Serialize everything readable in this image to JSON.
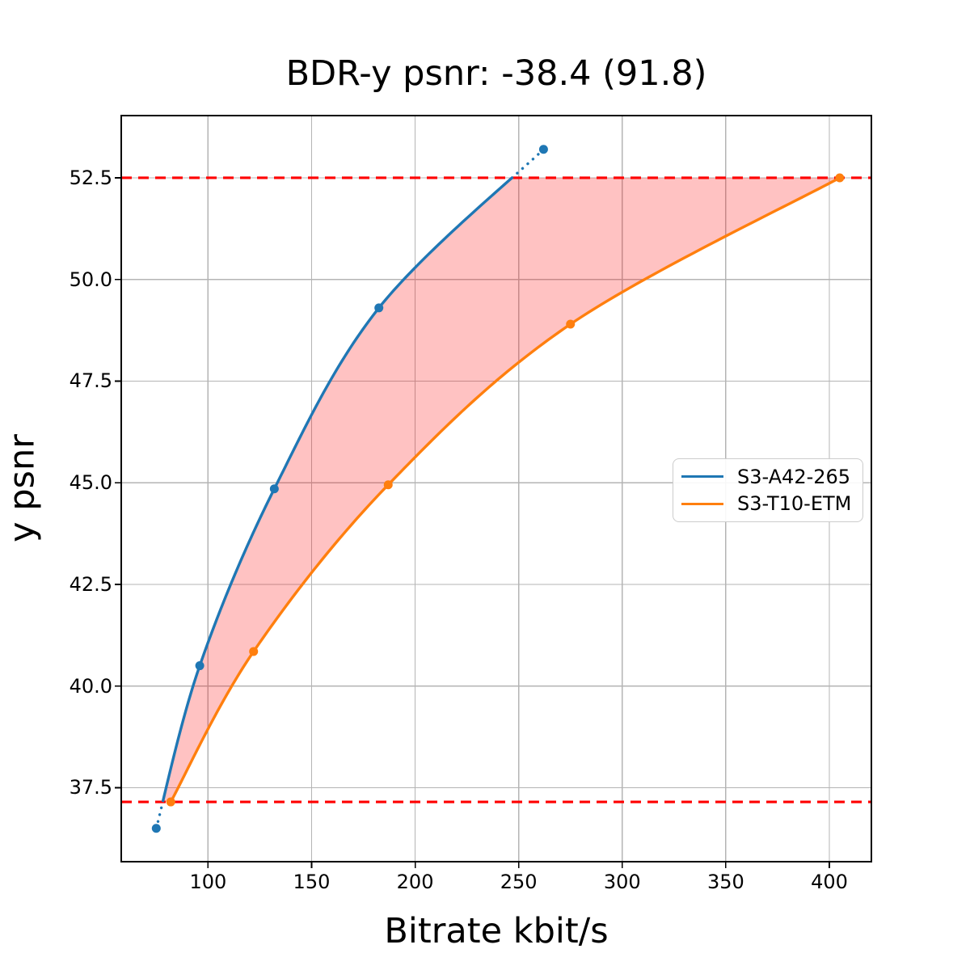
{
  "figure": {
    "title": "BDR-y psnr: -38.4 (91.8)",
    "xlabel": "Bitrate kbit/s",
    "ylabel": "y psnr"
  },
  "chart_data": {
    "type": "line",
    "title": "BDR-y psnr: -38.4 (91.8)",
    "xlabel": "Bitrate kbit/s",
    "ylabel": "y psnr",
    "xlim": [
      58.1,
      420.3
    ],
    "ylim": [
      35.68,
      54.03
    ],
    "xticks": [
      100,
      150,
      200,
      250,
      300,
      350,
      400
    ],
    "yticks": [
      37.5,
      40.0,
      42.5,
      45.0,
      47.5,
      50.0,
      52.5
    ],
    "grid": true,
    "grid_color": "#b4b4b4",
    "legend_position": "center-right",
    "series": [
      {
        "name": "S3-A42-265",
        "color": "#1f77b4",
        "marker": "circle",
        "points": [
          [
            75,
            36.5
          ],
          [
            96,
            40.5
          ],
          [
            132,
            44.85
          ],
          [
            182.5,
            49.3
          ],
          [
            262,
            53.2
          ]
        ]
      },
      {
        "name": "S3-T10-ETM",
        "color": "#ff7f0e",
        "marker": "circle",
        "points": [
          [
            82,
            37.15
          ],
          [
            122,
            40.85
          ],
          [
            187,
            44.95
          ],
          [
            275,
            48.9
          ],
          [
            405,
            52.5
          ]
        ]
      }
    ],
    "overlap_hlines": {
      "color": "#ff0000",
      "style": "dashed",
      "y_values": [
        52.5,
        37.15
      ]
    },
    "shaded_region": {
      "between_series": [
        "S3-A42-265",
        "S3-T10-ETM"
      ],
      "fill_color": "rgba(255,0,0,0.24)"
    },
    "out_of_range_style": "dotted"
  }
}
